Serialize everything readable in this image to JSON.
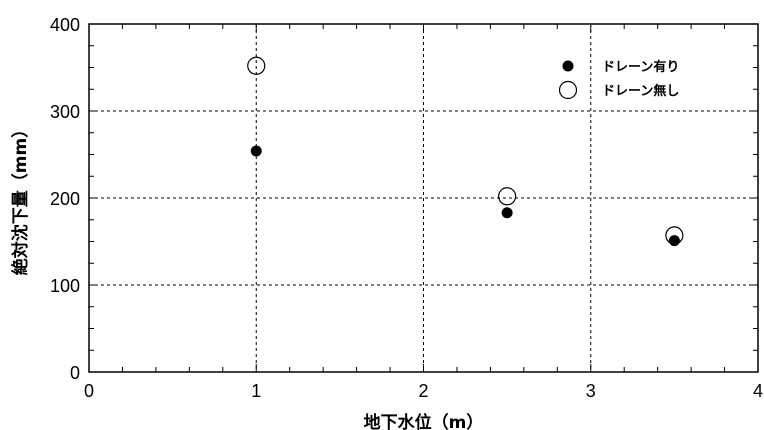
{
  "chart_data": {
    "type": "scatter",
    "xlabel": "地下水位（m）",
    "ylabel": "絶対沈下量（mm）",
    "xlim": [
      0,
      4
    ],
    "ylim": [
      0,
      400
    ],
    "x_ticks": [
      "0",
      "1",
      "2",
      "3",
      "4"
    ],
    "y_ticks": [
      "0",
      "100",
      "200",
      "300",
      "400"
    ],
    "grid": true,
    "legend_position": "top-right",
    "series": [
      {
        "name": "ドレーン有り",
        "marker": "filled-circle",
        "color": "#000000",
        "points": [
          {
            "x": 1.0,
            "y": 254
          },
          {
            "x": 2.5,
            "y": 183
          },
          {
            "x": 3.5,
            "y": 151
          }
        ]
      },
      {
        "name": "ドレーン無し",
        "marker": "open-circle",
        "color": "#000000",
        "points": [
          {
            "x": 1.0,
            "y": 352
          },
          {
            "x": 2.5,
            "y": 202
          },
          {
            "x": 3.5,
            "y": 157
          }
        ]
      }
    ]
  }
}
